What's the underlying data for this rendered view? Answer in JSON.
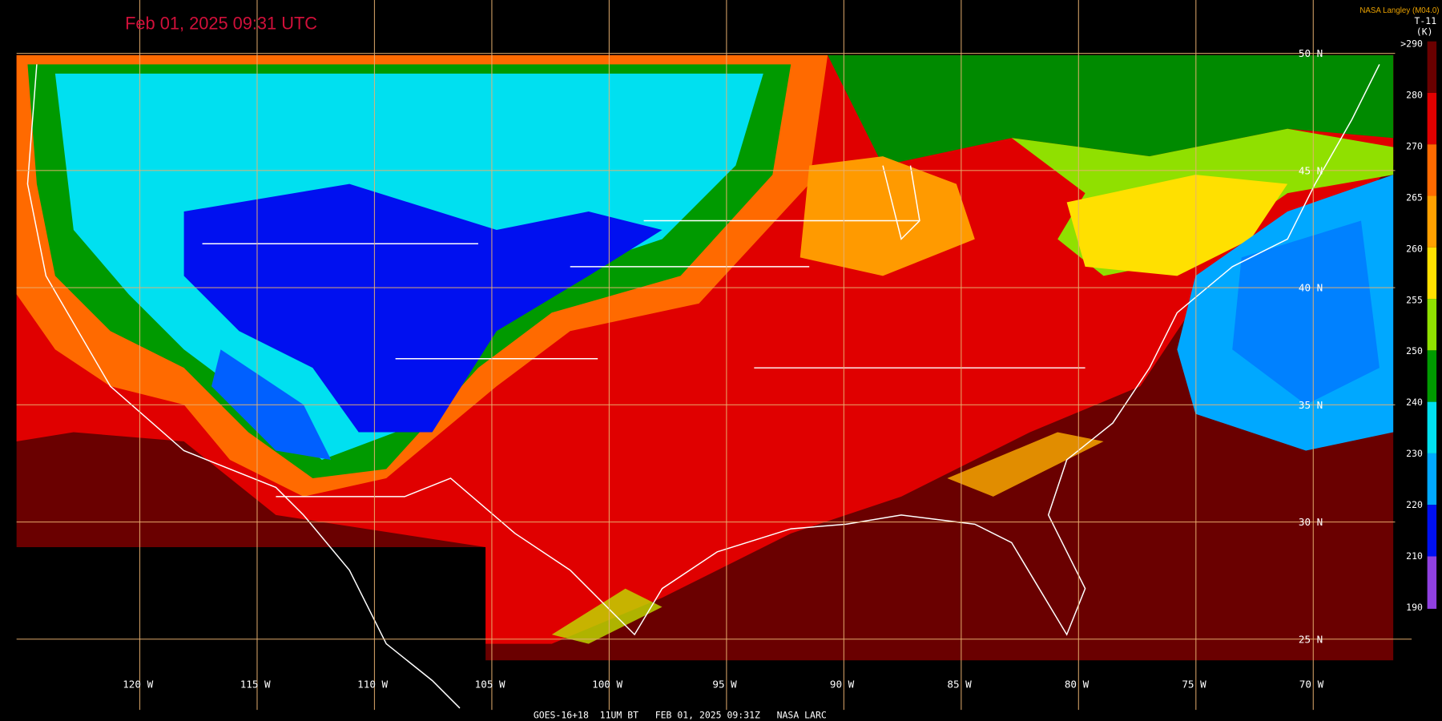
{
  "header": {
    "timestamp": "Feb 01, 2025 09:31 UTC",
    "source": "NASA Langley (M04.0)"
  },
  "colorbar": {
    "title": "T-11",
    "unit": "(K)",
    "ticks": [
      {
        "value": 290,
        "label": ">290"
      },
      280,
      270,
      265,
      260,
      255,
      250,
      240,
      230,
      220,
      210,
      190
    ]
  },
  "latitude_labels": [
    "50 N",
    "45 N",
    "40 N",
    "35 N",
    "30 N",
    "25 N"
  ],
  "longitude_labels": [
    "120 W",
    "115 W",
    "110 W",
    "105 W",
    "100 W",
    "95 W",
    "90 W",
    "85 W",
    "80 W",
    "75 W",
    "70 W"
  ],
  "footer": "GOES-16+18  11UM BT   FEB 01, 2025 09:31Z   NASA LARC"
}
